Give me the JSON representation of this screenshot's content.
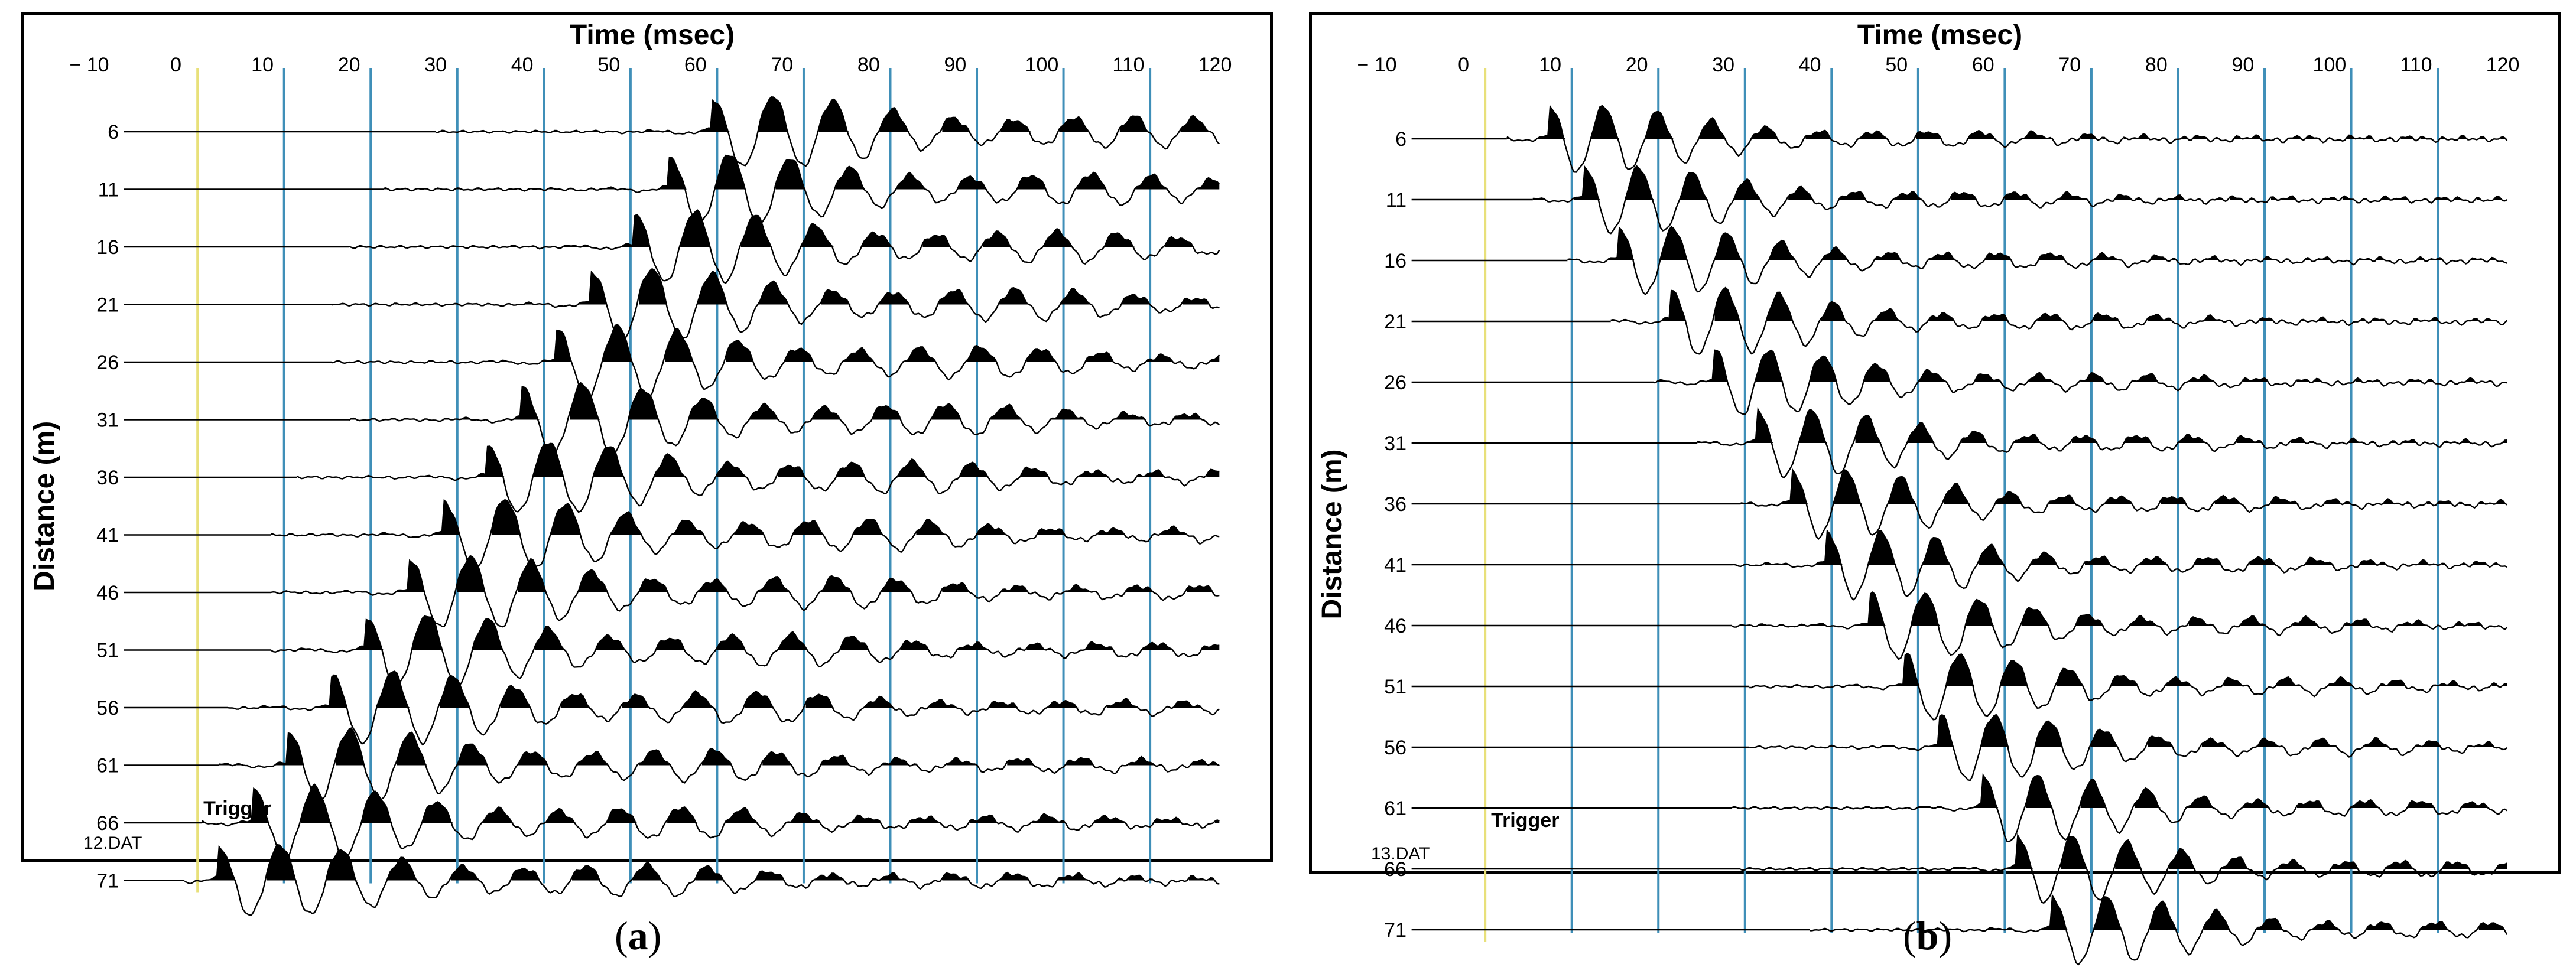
{
  "chart_data": [
    {
      "type": "line",
      "title": "",
      "xlabel": "Time (msec)",
      "ylabel": "Distance (m)",
      "xlim": [
        -10,
        120
      ],
      "x_ticks": [
        -10,
        0,
        10,
        20,
        30,
        40,
        50,
        60,
        70,
        80,
        90,
        100,
        110,
        120
      ],
      "gridlines_x": [
        2.5,
        12.5,
        22.5,
        32.5,
        42.5,
        52.5,
        62.5,
        72.5,
        82.5,
        92.5,
        102.5,
        112.5
      ],
      "trigger_time": 2.5,
      "trigger_label": "Trigger",
      "file_label": "12.DAT",
      "trace_distances": [
        6,
        11,
        16,
        21,
        26,
        31,
        36,
        41,
        46,
        51,
        56,
        61,
        66,
        71
      ],
      "first_arrival_ms": [
        62,
        57,
        53,
        48,
        44,
        40,
        36,
        31,
        27,
        22,
        18,
        13,
        9,
        5
      ],
      "trace_start_ms": [
        30,
        24,
        20,
        18,
        18,
        20,
        14,
        11,
        11,
        11,
        6,
        5,
        3,
        1
      ],
      "grid": true,
      "caption_prefix": "(",
      "caption_letter": "a",
      "caption_suffix": ")"
    },
    {
      "type": "line",
      "title": "",
      "xlabel": "Time (msec)",
      "ylabel": "Distance (m)",
      "xlim": [
        -10,
        120
      ],
      "x_ticks": [
        -10,
        0,
        10,
        20,
        30,
        40,
        50,
        60,
        70,
        80,
        90,
        100,
        110,
        120
      ],
      "gridlines_x": [
        2.5,
        12.5,
        22.5,
        32.5,
        42.5,
        52.5,
        62.5,
        72.5,
        82.5,
        92.5,
        102.5,
        112.5
      ],
      "trigger_time": 2.5,
      "trigger_label": "Trigger",
      "file_label": "13.DAT",
      "trace_distances": [
        6,
        11,
        16,
        21,
        26,
        31,
        36,
        41,
        46,
        51,
        56,
        61,
        66,
        71
      ],
      "first_arrival_ms": [
        10,
        14,
        18,
        24,
        29,
        34,
        38,
        42,
        47,
        51,
        55,
        60,
        64,
        68
      ],
      "trace_start_ms": [
        5,
        8,
        12,
        17,
        22,
        27,
        32,
        31,
        31,
        33,
        33,
        31,
        32,
        40
      ],
      "grid": true,
      "caption_prefix": "(",
      "caption_letter": "b",
      "caption_suffix": ")"
    }
  ]
}
